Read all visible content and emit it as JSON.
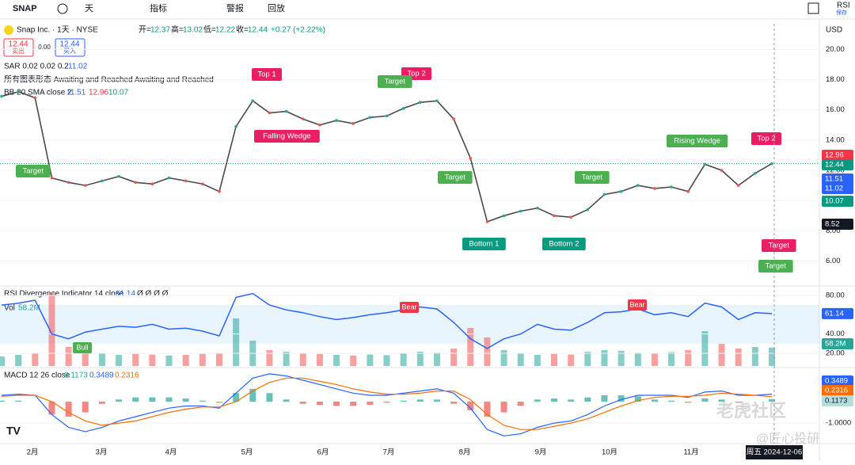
{
  "toolbar": {
    "symbol": "SNAP",
    "interval": "天",
    "indicators": "指标",
    "alert": "警报",
    "replay": "回放",
    "rsi": "RSI",
    "save": "保存"
  },
  "header": {
    "name": "Snap Inc. · 1天 · NYSE",
    "open_label": "开=",
    "open": "12.37",
    "high_label": "高=",
    "high": "13.02",
    "low_label": "低=",
    "low": "12.22",
    "close_label": "收=",
    "close": "12.44",
    "change": "+0.27 (+2.22%)",
    "currency": "USD",
    "sell": {
      "price": "12.44",
      "label": "卖出"
    },
    "spread": "0.00",
    "buy": {
      "price": "12.44",
      "label": "买入"
    },
    "sar": "SAR 0.02 0.02 0.2",
    "sar_value": "11.02",
    "patterns": "所有图表形态 Awaiting and Reached Awaiting and Reached",
    "bb": "BB 20 SMA close 2",
    "bb_basis": "11.51",
    "bb_upper": "12.96",
    "bb_lower": "10.07"
  },
  "price_panel": {
    "ylim": [
      4.4,
      21.7
    ],
    "yticks": [
      {
        "value": 6,
        "label": "6.00"
      },
      {
        "value": 8,
        "label": "8.00"
      },
      {
        "value": 10,
        "label": "10.00"
      },
      {
        "value": 12,
        "label": "12.00"
      },
      {
        "value": 14,
        "label": "14.00"
      },
      {
        "value": 16,
        "label": "16.00"
      },
      {
        "value": 18,
        "label": "18.00"
      },
      {
        "value": 20,
        "label": "20.00"
      }
    ],
    "close": [
      16.9,
      17.2,
      16.8,
      11.5,
      11.2,
      11.0,
      11.3,
      11.6,
      11.2,
      11.1,
      11.5,
      11.3,
      11.1,
      10.6,
      14.9,
      16.6,
      15.8,
      15.9,
      15.4,
      15.0,
      15.3,
      15.1,
      15.5,
      15.6,
      16.1,
      16.5,
      16.6,
      15.4,
      12.8,
      8.6,
      9.0,
      9.3,
      9.5,
      9.0,
      8.9,
      9.4,
      10.4,
      10.6,
      11.0,
      10.8,
      10.9,
      10.6,
      12.4,
      12.0,
      11.0,
      11.8,
      12.44
    ],
    "line_color": "#4a4a4a",
    "tags": [
      {
        "value": 12.96,
        "label": "12.96",
        "color": "#f23645"
      },
      {
        "value": 12.44,
        "label": "12.44",
        "color": "#089981"
      },
      {
        "value": 11.51,
        "label": "11.51",
        "color": "#2962ff"
      },
      {
        "value": 11.02,
        "label": "11.02",
        "color": "#2962ff"
      },
      {
        "value": 10.07,
        "label": "10.07",
        "color": "#089981"
      },
      {
        "value": 8.52,
        "label": "8.52",
        "color": "#131722"
      }
    ],
    "patterns": [
      {
        "text": "Top 1",
        "color": "#e91e63"
      },
      {
        "text": "Falling Wedge",
        "color": "#e91e63"
      },
      {
        "text": "Target",
        "color": "#4caf50"
      },
      {
        "text": "Top 2",
        "color": "#e91e63"
      },
      {
        "text": "Target",
        "color": "#4caf50"
      },
      {
        "text": "Target",
        "color": "#4caf50"
      },
      {
        "text": "Bottom 1",
        "color": "#089981"
      },
      {
        "text": "Bottom 2",
        "color": "#089981"
      },
      {
        "text": "Target",
        "color": "#4caf50"
      },
      {
        "text": "Rising Wedge",
        "color": "#4caf50"
      },
      {
        "text": "Top 2",
        "color": "#e91e63"
      },
      {
        "text": "Target",
        "color": "#e91e63"
      },
      {
        "text": "Target",
        "color": "#4caf50"
      }
    ]
  },
  "rsi_panel": {
    "title": "RSI Divergence Indicator 14 close",
    "value": "61.14",
    "flags": "Ø Ø Ø Ø",
    "ylim": [
      6.8,
      89
    ],
    "yticks": [
      {
        "value": 20,
        "label": "20.00"
      },
      {
        "value": 40,
        "label": "40.00"
      },
      {
        "value": 80,
        "label": "80.00"
      }
    ],
    "band": [
      30,
      70
    ],
    "color": "#2962ff",
    "values": [
      70,
      72,
      75,
      40,
      35,
      42,
      45,
      48,
      47,
      50,
      45,
      46,
      43,
      38,
      78,
      82,
      70,
      65,
      62,
      58,
      55,
      57,
      60,
      62,
      65,
      68,
      66,
      52,
      35,
      25,
      35,
      40,
      50,
      45,
      44,
      52,
      62,
      63,
      66,
      60,
      62,
      58,
      72,
      68,
      55,
      62,
      61.14
    ],
    "tag": {
      "value": 61.14,
      "label": "61.14"
    },
    "signals": [
      {
        "text": "Bull",
        "color": "#4caf50"
      },
      {
        "text": "Bear",
        "color": "#f23645"
      },
      {
        "text": "Bear",
        "color": "#f23645"
      }
    ],
    "vol_title": "Vol",
    "vol_value": "58.2M",
    "vlim": [
      0,
      250
    ],
    "up_color": "#26a69a",
    "down_color": "#ef5350",
    "volume": [
      30,
      35,
      40,
      230,
      60,
      45,
      40,
      35,
      38,
      36,
      33,
      35,
      38,
      40,
      150,
      80,
      50,
      45,
      40,
      38,
      35,
      33,
      36,
      34,
      40,
      45,
      42,
      55,
      120,
      90,
      50,
      40,
      35,
      38,
      36,
      45,
      50,
      48,
      42,
      40,
      44,
      50,
      110,
      70,
      55,
      60,
      58.2
    ],
    "vol_tag": {
      "value": 58.2,
      "label": "58.2M"
    }
  },
  "macd_panel": {
    "title": "MACD 12 26 close",
    "hist_value": "0.1173",
    "macd_value": "0.3489",
    "signal_value": "0.2316",
    "ylim": [
      -1.96,
      1.52
    ],
    "yticks": [
      {
        "value": -1,
        "label": "-1.0000"
      }
    ],
    "macd_color": "#2962ff",
    "signal_color": "#ff6d00",
    "macd": [
      0.3,
      0.35,
      0.3,
      -0.6,
      -1.2,
      -1.4,
      -1.2,
      -0.9,
      -0.7,
      -0.5,
      -0.3,
      -0.2,
      -0.2,
      -0.3,
      0.4,
      1.1,
      1.3,
      1.2,
      1.0,
      0.8,
      0.6,
      0.4,
      0.3,
      0.3,
      0.4,
      0.5,
      0.6,
      0.4,
      -0.3,
      -1.3,
      -1.6,
      -1.5,
      -1.2,
      -1.0,
      -0.9,
      -0.6,
      -0.2,
      0.1,
      0.3,
      0.3,
      0.3,
      0.2,
      0.45,
      0.5,
      0.3,
      0.3,
      0.3489
    ],
    "signal": [
      0.25,
      0.3,
      0.3,
      0.0,
      -0.5,
      -0.9,
      -1.1,
      -1.0,
      -0.9,
      -0.7,
      -0.5,
      -0.35,
      -0.25,
      -0.25,
      0.0,
      0.5,
      0.9,
      1.1,
      1.1,
      0.95,
      0.8,
      0.6,
      0.45,
      0.35,
      0.35,
      0.4,
      0.5,
      0.5,
      0.1,
      -0.6,
      -1.1,
      -1.3,
      -1.3,
      -1.15,
      -1.0,
      -0.8,
      -0.5,
      -0.2,
      0.05,
      0.2,
      0.25,
      0.25,
      0.3,
      0.4,
      0.35,
      0.3,
      0.2316
    ],
    "histogram": [
      0.05,
      0.05,
      0,
      -0.6,
      -0.7,
      -0.5,
      -0.1,
      0.1,
      0.2,
      0.2,
      0.2,
      0.15,
      0.05,
      -0.05,
      0.4,
      0.6,
      0.4,
      0.1,
      -0.1,
      -0.15,
      -0.2,
      -0.2,
      -0.15,
      -0.05,
      0.05,
      0.1,
      0.1,
      -0.1,
      -0.4,
      -0.7,
      -0.5,
      -0.2,
      0.1,
      0.15,
      0.1,
      0.2,
      0.3,
      0.3,
      0.25,
      0.1,
      0.05,
      -0.05,
      0.15,
      0.1,
      -0.05,
      0,
      0.1173
    ],
    "tags": [
      {
        "value": 0.3489,
        "label": "0.3489",
        "color": "#2962ff"
      },
      {
        "value": 0.2316,
        "label": "0.2316",
        "color": "#ff6d00"
      },
      {
        "value": 0.1173,
        "label": "0.1173",
        "color": "#b2dfdb"
      }
    ]
  },
  "time_axis": {
    "months": [
      "2月",
      "3月",
      "4月",
      "5月",
      "6月",
      "7月",
      "8月",
      "9月",
      "10月",
      "11月"
    ],
    "cursor": "周五 2024-12-06"
  },
  "watermark": {
    "brand": "老虎社区",
    "author": "@匠心投研"
  }
}
